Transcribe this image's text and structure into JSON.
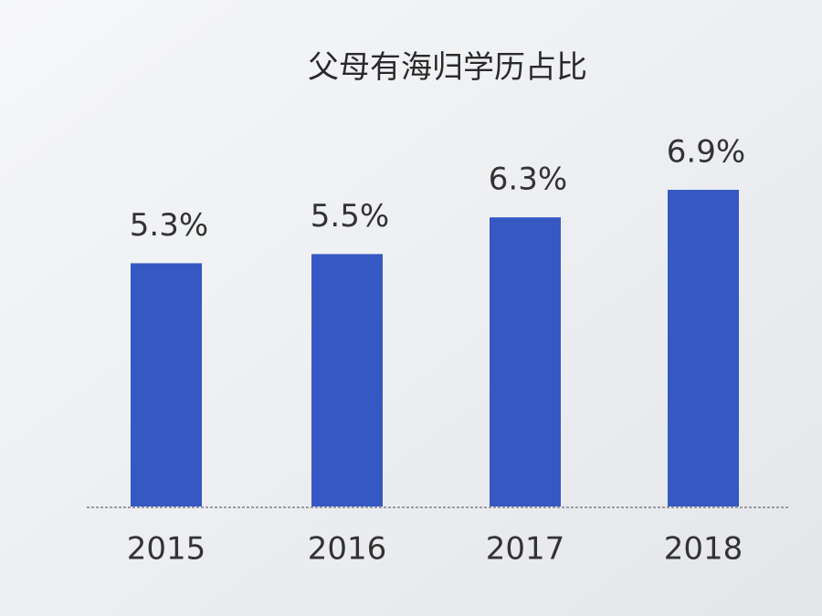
{
  "chart_data": {
    "type": "bar",
    "title": "父母有海归学历占比",
    "categories": [
      "2015",
      "2016",
      "2017",
      "2018"
    ],
    "values": [
      5.3,
      5.5,
      6.3,
      6.9
    ],
    "value_labels": [
      "5.3%",
      "5.5%",
      "6.3%",
      "6.9%"
    ],
    "color": "#3558c2"
  }
}
